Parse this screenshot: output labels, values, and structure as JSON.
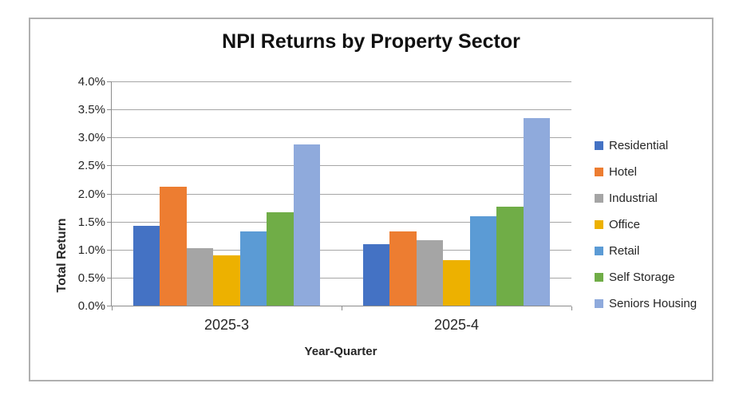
{
  "chart_box": {
    "background": "#ffffff",
    "border_color": "#b0b0b0"
  },
  "chart_data": {
    "type": "bar",
    "title": "NPI Returns by Property Sector",
    "xlabel": "Year-Quarter",
    "ylabel": "Total Return",
    "categories": [
      "2025-3",
      "2025-4"
    ],
    "series": [
      {
        "name": "Residential",
        "color": "#4472C4",
        "values": [
          1.43,
          1.09
        ]
      },
      {
        "name": "Hotel",
        "color": "#ED7D31",
        "values": [
          2.12,
          1.33
        ]
      },
      {
        "name": "Industrial",
        "color": "#A5A5A5",
        "values": [
          1.03,
          1.17
        ]
      },
      {
        "name": "Office",
        "color": "#EDB100",
        "values": [
          0.9,
          0.81
        ]
      },
      {
        "name": "Retail",
        "color": "#5B9BD5",
        "values": [
          1.32,
          1.6
        ]
      },
      {
        "name": "Self Storage",
        "color": "#70AD47",
        "values": [
          1.67,
          1.77
        ]
      },
      {
        "name": "Seniors Housing",
        "color": "#8FAADC",
        "values": [
          2.88,
          3.34
        ]
      }
    ],
    "ylim": [
      0,
      4.0
    ],
    "ytick_step": 0.5,
    "ytick_labels": [
      "4.0%",
      "3.5%",
      "3.0%",
      "2.5%",
      "2.0%",
      "1.5%",
      "1.0%",
      "0.5%",
      "0.0%"
    ],
    "grid": true,
    "legend_position": "right",
    "gridline_color": "#a6a6a6",
    "axis_color": "#8c8c8c",
    "text_color": "#262626"
  }
}
